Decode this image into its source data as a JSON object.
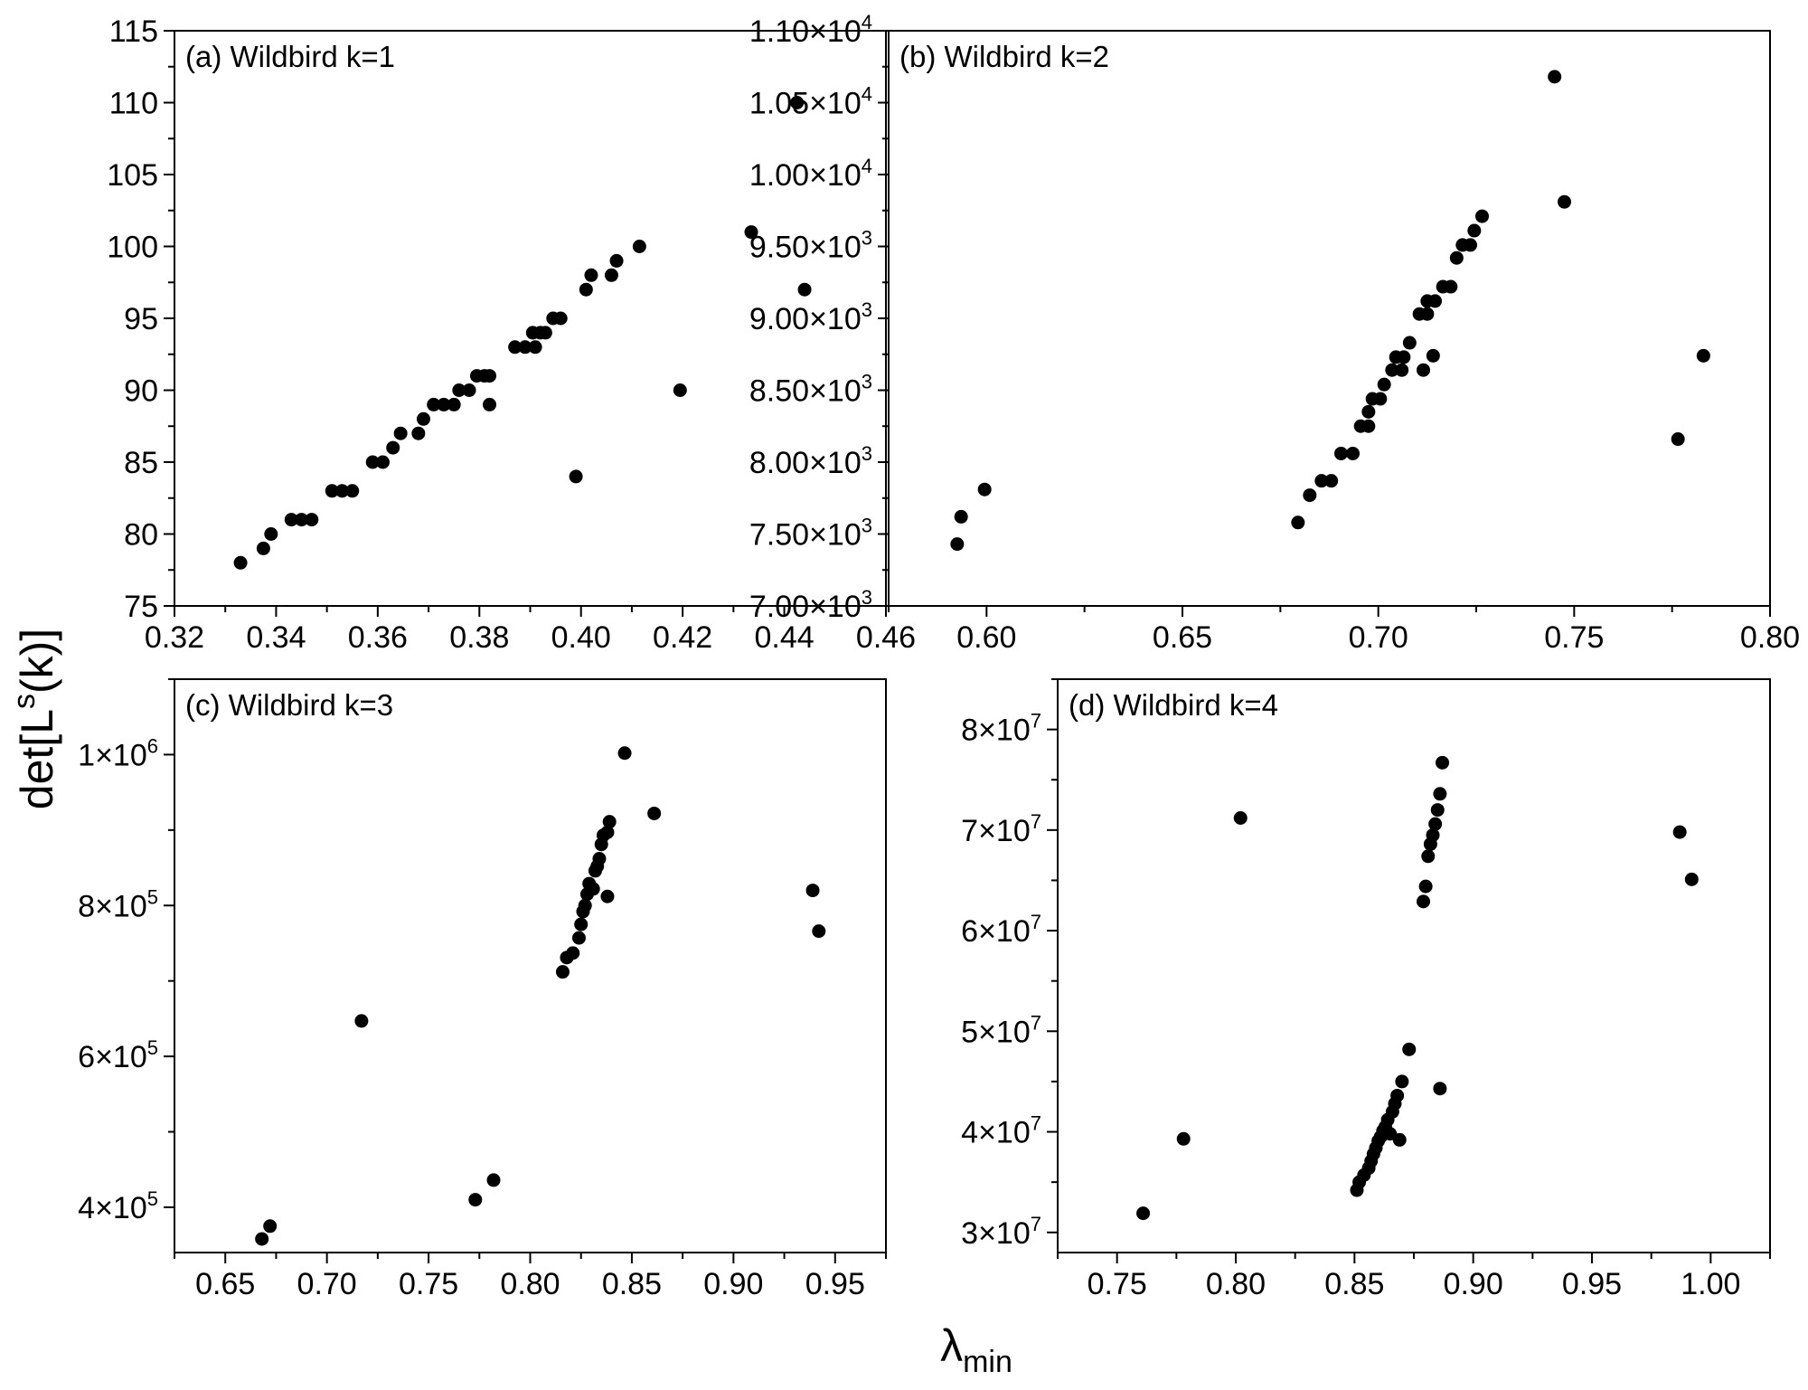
{
  "figure": {
    "ylabel": {
      "main": "det[L",
      "sup": "s",
      "tail": "(k)]"
    },
    "xlabel": {
      "main": "λ",
      "sub": "min"
    }
  },
  "chart_data": [
    {
      "type": "scatter",
      "label": "(a) Wildbird  k=1",
      "xlim": [
        0.32,
        0.46
      ],
      "ylim": [
        75,
        115
      ],
      "x_ticks": [
        0.32,
        0.34,
        0.36,
        0.38,
        0.4,
        0.42,
        0.44,
        0.46
      ],
      "x_tick_labels": [
        "0.32",
        "0.34",
        "0.36",
        "0.38",
        "0.40",
        "0.42",
        "0.44",
        "0.46"
      ],
      "y_ticks": [
        75,
        80,
        85,
        90,
        95,
        100,
        105,
        110,
        115
      ],
      "y_tick_labels": [
        {
          "m": "75"
        },
        {
          "m": "80"
        },
        {
          "m": "85"
        },
        {
          "m": "90"
        },
        {
          "m": "95"
        },
        {
          "m": "100"
        },
        {
          "m": "105"
        },
        {
          "m": "110"
        },
        {
          "m": "115"
        }
      ],
      "points": [
        [
          0.333,
          78
        ],
        [
          0.3375,
          79
        ],
        [
          0.339,
          80
        ],
        [
          0.343,
          81
        ],
        [
          0.345,
          81
        ],
        [
          0.347,
          81
        ],
        [
          0.351,
          83
        ],
        [
          0.353,
          83
        ],
        [
          0.355,
          83
        ],
        [
          0.359,
          85
        ],
        [
          0.361,
          85
        ],
        [
          0.363,
          86
        ],
        [
          0.3645,
          87
        ],
        [
          0.368,
          87
        ],
        [
          0.369,
          88
        ],
        [
          0.371,
          89
        ],
        [
          0.373,
          89
        ],
        [
          0.375,
          89
        ],
        [
          0.376,
          90
        ],
        [
          0.378,
          90
        ],
        [
          0.3795,
          91
        ],
        [
          0.381,
          91
        ],
        [
          0.382,
          91
        ],
        [
          0.382,
          89
        ],
        [
          0.387,
          93
        ],
        [
          0.389,
          93
        ],
        [
          0.391,
          93
        ],
        [
          0.3905,
          94
        ],
        [
          0.392,
          94
        ],
        [
          0.393,
          94
        ],
        [
          0.3945,
          95
        ],
        [
          0.396,
          95
        ],
        [
          0.401,
          97
        ],
        [
          0.402,
          98
        ],
        [
          0.406,
          98
        ],
        [
          0.407,
          99
        ],
        [
          0.4115,
          100
        ],
        [
          0.399,
          84
        ],
        [
          0.4195,
          90
        ],
        [
          0.4335,
          101
        ],
        [
          0.4425,
          110
        ],
        [
          0.444,
          97
        ]
      ]
    },
    {
      "type": "scatter",
      "label": "(b) Wildbird  k=2",
      "xlim": [
        0.575,
        0.8
      ],
      "ylim": [
        7000,
        11000
      ],
      "x_ticks": [
        0.6,
        0.65,
        0.7,
        0.75,
        0.8
      ],
      "x_tick_labels": [
        "0.60",
        "0.65",
        "0.70",
        "0.75",
        "0.80"
      ],
      "y_ticks": [
        7000,
        7500,
        8000,
        8500,
        9000,
        9500,
        10000,
        10500,
        11000
      ],
      "y_tick_labels": [
        {
          "m": "7.00×10",
          "e": "3"
        },
        {
          "m": "7.50×10",
          "e": "3"
        },
        {
          "m": "8.00×10",
          "e": "3"
        },
        {
          "m": "8.50×10",
          "e": "3"
        },
        {
          "m": "9.00×10",
          "e": "3"
        },
        {
          "m": "9.50×10",
          "e": "3"
        },
        {
          "m": "1.00×10",
          "e": "4"
        },
        {
          "m": "1.05×10",
          "e": "4"
        },
        {
          "m": "1.10×10",
          "e": "4"
        }
      ],
      "points": [
        [
          0.5925,
          7430
        ],
        [
          0.5935,
          7620
        ],
        [
          0.5995,
          7810
        ],
        [
          0.6795,
          7580
        ],
        [
          0.6825,
          7770
        ],
        [
          0.6855,
          7870
        ],
        [
          0.688,
          7870
        ],
        [
          0.6905,
          8060
        ],
        [
          0.6935,
          8060
        ],
        [
          0.6955,
          8250
        ],
        [
          0.6975,
          8250
        ],
        [
          0.6975,
          8350
        ],
        [
          0.6985,
          8440
        ],
        [
          0.7005,
          8440
        ],
        [
          0.7015,
          8540
        ],
        [
          0.7035,
          8640
        ],
        [
          0.7045,
          8730
        ],
        [
          0.706,
          8640
        ],
        [
          0.7065,
          8730
        ],
        [
          0.708,
          8830
        ],
        [
          0.7105,
          9030
        ],
        [
          0.7115,
          8640
        ],
        [
          0.7125,
          9030
        ],
        [
          0.7125,
          9120
        ],
        [
          0.714,
          8740
        ],
        [
          0.7145,
          9120
        ],
        [
          0.7165,
          9220
        ],
        [
          0.7185,
          9220
        ],
        [
          0.72,
          9420
        ],
        [
          0.7215,
          9510
        ],
        [
          0.7235,
          9510
        ],
        [
          0.7245,
          9610
        ],
        [
          0.7265,
          9710
        ],
        [
          0.745,
          10680
        ],
        [
          0.7475,
          9810
        ],
        [
          0.7765,
          8160
        ],
        [
          0.783,
          8740
        ]
      ]
    },
    {
      "type": "scatter",
      "label": "(c) Wildbird  k=3",
      "xlim": [
        0.625,
        0.975
      ],
      "ylim": [
        340000,
        1100000
      ],
      "x_ticks": [
        0.65,
        0.7,
        0.75,
        0.8,
        0.85,
        0.9,
        0.95
      ],
      "x_tick_labels": [
        "0.65",
        "0.70",
        "0.75",
        "0.80",
        "0.85",
        "0.90",
        "0.95"
      ],
      "y_ticks": [
        400000,
        600000,
        800000,
        1000000
      ],
      "y_tick_labels": [
        {
          "m": "4×10",
          "e": "5"
        },
        {
          "m": "6×10",
          "e": "5"
        },
        {
          "m": "8×10",
          "e": "5"
        },
        {
          "m": "1×10",
          "e": "6"
        }
      ],
      "points": [
        [
          0.668,
          358000
        ],
        [
          0.672,
          375000
        ],
        [
          0.717,
          647000
        ],
        [
          0.773,
          410000
        ],
        [
          0.782,
          436000
        ],
        [
          0.816,
          712000
        ],
        [
          0.818,
          731000
        ],
        [
          0.821,
          737000
        ],
        [
          0.824,
          757000
        ],
        [
          0.825,
          775000
        ],
        [
          0.826,
          792000
        ],
        [
          0.827,
          800000
        ],
        [
          0.828,
          815000
        ],
        [
          0.829,
          829000
        ],
        [
          0.831,
          822000
        ],
        [
          0.832,
          846000
        ],
        [
          0.833,
          852000
        ],
        [
          0.834,
          862000
        ],
        [
          0.835,
          881000
        ],
        [
          0.836,
          893000
        ],
        [
          0.838,
          897000
        ],
        [
          0.839,
          911000
        ],
        [
          0.838,
          812000
        ],
        [
          0.8465,
          1002000
        ],
        [
          0.861,
          922000
        ],
        [
          0.939,
          820000
        ],
        [
          0.942,
          766000
        ]
      ]
    },
    {
      "type": "scatter",
      "label": "(d) Wildbird  k=4",
      "xlim": [
        0.725,
        1.025
      ],
      "ylim": [
        28000000,
        85000000
      ],
      "x_ticks": [
        0.75,
        0.8,
        0.85,
        0.9,
        0.95,
        1.0
      ],
      "x_tick_labels": [
        "0.75",
        "0.80",
        "0.85",
        "0.90",
        "0.95",
        "1.00"
      ],
      "y_ticks": [
        30000000,
        40000000,
        50000000,
        60000000,
        70000000,
        80000000
      ],
      "y_tick_labels": [
        {
          "m": "3×10",
          "e": "7"
        },
        {
          "m": "4×10",
          "e": "7"
        },
        {
          "m": "5×10",
          "e": "7"
        },
        {
          "m": "6×10",
          "e": "7"
        },
        {
          "m": "7×10",
          "e": "7"
        },
        {
          "m": "8×10",
          "e": "7"
        }
      ],
      "points": [
        [
          0.761,
          31900000
        ],
        [
          0.778,
          39300000
        ],
        [
          0.802,
          71200000
        ],
        [
          0.851,
          34200000
        ],
        [
          0.852,
          35000000
        ],
        [
          0.854,
          35700000
        ],
        [
          0.856,
          36400000
        ],
        [
          0.857,
          37100000
        ],
        [
          0.858,
          37800000
        ],
        [
          0.859,
          38400000
        ],
        [
          0.86,
          39100000
        ],
        [
          0.861,
          39500000
        ],
        [
          0.862,
          40100000
        ],
        [
          0.863,
          40500000
        ],
        [
          0.864,
          41200000
        ],
        [
          0.865,
          39800000
        ],
        [
          0.866,
          42000000
        ],
        [
          0.867,
          42800000
        ],
        [
          0.868,
          43600000
        ],
        [
          0.869,
          39200000
        ],
        [
          0.87,
          45000000
        ],
        [
          0.873,
          48200000
        ],
        [
          0.879,
          62900000
        ],
        [
          0.88,
          64400000
        ],
        [
          0.881,
          67400000
        ],
        [
          0.882,
          68600000
        ],
        [
          0.883,
          69500000
        ],
        [
          0.884,
          70600000
        ],
        [
          0.885,
          72000000
        ],
        [
          0.886,
          73600000
        ],
        [
          0.887,
          76700000
        ],
        [
          0.886,
          44300000
        ],
        [
          0.987,
          69800000
        ],
        [
          0.992,
          65100000
        ]
      ]
    }
  ]
}
